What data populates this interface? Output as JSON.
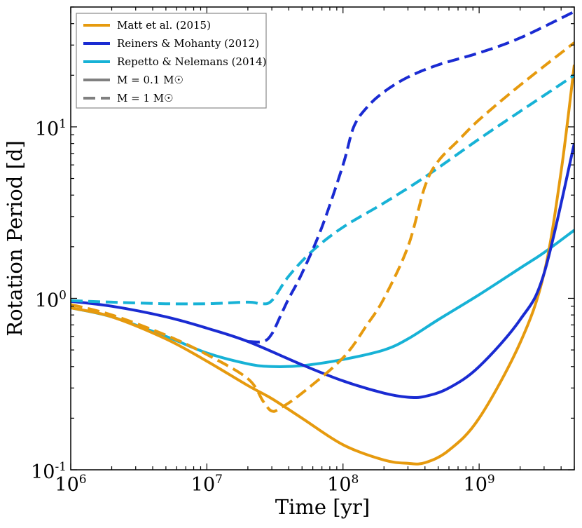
{
  "chart_data": {
    "type": "line",
    "xlabel": "Time [yr]",
    "ylabel": "Rotation Period [d]",
    "xscale": "log",
    "yscale": "log",
    "xlim": [
      1000000,
      5000000000
    ],
    "ylim": [
      0.1,
      50
    ],
    "grid": false,
    "legend_position": "top-left",
    "x_ticks": [
      {
        "base": "10",
        "exp": "6",
        "value": 1000000
      },
      {
        "base": "10",
        "exp": "7",
        "value": 10000000
      },
      {
        "base": "10",
        "exp": "8",
        "value": 100000000
      },
      {
        "base": "10",
        "exp": "9",
        "value": 1000000000
      }
    ],
    "y_ticks": [
      {
        "base": "10",
        "exp": "-1",
        "value": 0.1
      },
      {
        "base": "10",
        "exp": "0",
        "value": 1
      },
      {
        "base": "10",
        "exp": "1",
        "value": 10
      }
    ],
    "legend": [
      {
        "label": "Matt et al. (2015)",
        "color": "#E69A0E",
        "style": "solid"
      },
      {
        "label": "Reiners & Mohanty (2012)",
        "color": "#1A2BD2",
        "style": "solid"
      },
      {
        "label": "Repetto & Nelemans (2014)",
        "color": "#17B2D6",
        "style": "solid"
      },
      {
        "label": "M = 0.1 M☉",
        "color": "#808080",
        "style": "solid"
      },
      {
        "label": "M = 1 M☉",
        "color": "#808080",
        "style": "dashed"
      }
    ],
    "series": [
      {
        "model": "Matt et al. (2015)",
        "mass": "M = 0.1 M☉",
        "color": "#E69A0E",
        "style": "solid",
        "x": [
          1000000,
          2000000,
          5000000,
          10000000,
          20000000,
          30000000,
          50000000,
          100000000,
          200000000,
          300000000,
          400000000,
          600000000,
          1000000000,
          2000000000,
          3000000000,
          4000000000,
          5000000000
        ],
        "y": [
          0.88,
          0.78,
          0.58,
          0.43,
          0.31,
          0.26,
          0.2,
          0.14,
          0.114,
          0.109,
          0.11,
          0.13,
          0.2,
          0.55,
          1.4,
          5.5,
          23
        ]
      },
      {
        "model": "Matt et al. (2015)",
        "mass": "M = 1 M☉",
        "color": "#E69A0E",
        "style": "dashed",
        "x": [
          1000000,
          2000000,
          5000000,
          10000000,
          20000000,
          26000000,
          30000000,
          35000000,
          50000000,
          100000000,
          150000000,
          200000000,
          300000000,
          400000000,
          500000000,
          700000000,
          1000000000,
          2000000000,
          5000000000
        ],
        "y": [
          0.92,
          0.8,
          0.61,
          0.47,
          0.34,
          0.25,
          0.22,
          0.23,
          0.28,
          0.45,
          0.7,
          1.0,
          2.0,
          4.5,
          6.3,
          8.3,
          11,
          17.5,
          31
        ]
      },
      {
        "model": "Reiners & Mohanty (2012)",
        "mass": "M = 0.1 M☉",
        "color": "#1A2BD2",
        "style": "solid",
        "x": [
          1000000,
          2000000,
          5000000,
          10000000,
          20000000,
          50000000,
          100000000,
          200000000,
          300000000,
          400000000,
          600000000,
          1000000000,
          2000000000,
          3000000000,
          5000000000
        ],
        "y": [
          0.96,
          0.9,
          0.78,
          0.67,
          0.56,
          0.41,
          0.33,
          0.28,
          0.265,
          0.268,
          0.3,
          0.4,
          0.75,
          1.4,
          8.0
        ]
      },
      {
        "model": "Reiners & Mohanty (2012)",
        "mass": "M = 1 M☉",
        "color": "#1A2BD2",
        "style": "dashed",
        "x": [
          20000000,
          26000000,
          30000000,
          35000000,
          40000000,
          50000000,
          70000000,
          100000000,
          120000000,
          150000000,
          200000000,
          300000000,
          500000000,
          1000000000,
          2000000000,
          5000000000
        ],
        "y": [
          0.56,
          0.56,
          0.62,
          0.8,
          1.0,
          1.4,
          2.6,
          6.0,
          10,
          13,
          16,
          19.5,
          23,
          27,
          33,
          47
        ]
      },
      {
        "model": "Repetto & Nelemans (2014)",
        "mass": "M = 0.1 M☉",
        "color": "#17B2D6",
        "style": "solid",
        "x": [
          1000000,
          2000000,
          5000000,
          10000000,
          20000000,
          30000000,
          50000000,
          100000000,
          200000000,
          300000000,
          500000000,
          1000000000,
          2000000000,
          3000000000,
          5000000000
        ],
        "y": [
          0.88,
          0.78,
          0.6,
          0.48,
          0.415,
          0.4,
          0.405,
          0.44,
          0.5,
          0.58,
          0.75,
          1.05,
          1.5,
          1.85,
          2.5
        ]
      },
      {
        "model": "Repetto & Nelemans (2014)",
        "mass": "M = 1 M☉",
        "color": "#17B2D6",
        "style": "dashed",
        "x": [
          1000000,
          2000000,
          5000000,
          10000000,
          20000000,
          25000000,
          30000000,
          40000000,
          60000000,
          100000000,
          200000000,
          400000000,
          1000000000,
          2000000000,
          5000000000
        ],
        "y": [
          0.97,
          0.95,
          0.93,
          0.93,
          0.95,
          0.93,
          0.97,
          1.35,
          1.9,
          2.6,
          3.6,
          5.1,
          8.5,
          12.3,
          20
        ]
      }
    ]
  }
}
